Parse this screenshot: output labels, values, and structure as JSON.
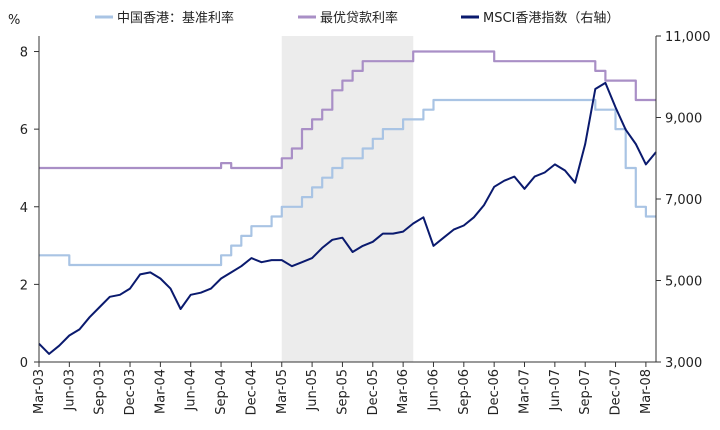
{
  "chart_data": {
    "type": "line",
    "left_axis": {
      "unit": "%",
      "ticks": [
        0,
        2,
        4,
        6,
        8
      ],
      "tick_labels": [
        "0",
        "2",
        "4",
        "6",
        "8"
      ],
      "range": [
        0,
        8.4
      ]
    },
    "right_axis": {
      "ticks": [
        3000,
        5000,
        7000,
        9000,
        11000
      ],
      "tick_labels": [
        "3,000",
        "5,000",
        "7,000",
        "9,000",
        "11,000"
      ],
      "range": [
        3000,
        11000
      ]
    },
    "x_axis": {
      "range": [
        "2003-03",
        "2008-04"
      ],
      "tick_labels": [
        "Mar-03",
        "Jun-03",
        "Sep-03",
        "Dec-03",
        "Mar-04",
        "Jun-04",
        "Sep-04",
        "Dec-04",
        "Mar-05",
        "Jun-05",
        "Sep-05",
        "Dec-05",
        "Mar-06",
        "Jun-06",
        "Sep-06",
        "Dec-06",
        "Mar-07",
        "Jun-07",
        "Sep-07",
        "Dec-07",
        "Mar-08"
      ],
      "tick_dates": [
        "2003-03",
        "2003-06",
        "2003-09",
        "2003-12",
        "2004-03",
        "2004-06",
        "2004-09",
        "2004-12",
        "2005-03",
        "2005-06",
        "2005-09",
        "2005-12",
        "2006-03",
        "2006-06",
        "2006-09",
        "2006-12",
        "2007-03",
        "2007-06",
        "2007-09",
        "2007-12",
        "2008-03"
      ]
    },
    "shaded_period": [
      "2005-03",
      "2006-04"
    ],
    "legend_position": "top",
    "grid": false,
    "series": [
      {
        "name": "中国香港：基准利率",
        "axis": "left",
        "color": "#a9c4e4",
        "step": true,
        "points": [
          [
            "2003-03",
            2.75
          ],
          [
            "2003-06",
            2.5
          ],
          [
            "2004-09",
            2.75
          ],
          [
            "2004-10",
            3.0
          ],
          [
            "2004-11",
            3.25
          ],
          [
            "2004-12",
            3.5
          ],
          [
            "2005-02",
            3.75
          ],
          [
            "2005-03",
            4.0
          ],
          [
            "2005-05",
            4.25
          ],
          [
            "2005-06",
            4.5
          ],
          [
            "2005-07",
            4.75
          ],
          [
            "2005-08",
            5.0
          ],
          [
            "2005-09",
            5.25
          ],
          [
            "2005-11",
            5.5
          ],
          [
            "2005-12",
            5.75
          ],
          [
            "2006-01",
            6.0
          ],
          [
            "2006-03",
            6.25
          ],
          [
            "2006-05",
            6.5
          ],
          [
            "2006-06",
            6.75
          ],
          [
            "2007-09",
            6.75
          ],
          [
            "2007-10",
            6.5
          ],
          [
            "2007-12",
            6.0
          ],
          [
            "2008-01",
            5.75
          ],
          [
            "2008-01",
            5.0
          ],
          [
            "2008-02",
            4.0
          ],
          [
            "2008-03",
            3.75
          ],
          [
            "2008-04",
            3.75
          ]
        ]
      },
      {
        "name": "最优贷款利率",
        "axis": "left",
        "color": "#a98fc6",
        "step": true,
        "points": [
          [
            "2003-03",
            5.0
          ],
          [
            "2004-09",
            5.125
          ],
          [
            "2004-10",
            5.0
          ],
          [
            "2005-03",
            5.25
          ],
          [
            "2005-04",
            5.5
          ],
          [
            "2005-05",
            6.0
          ],
          [
            "2005-06",
            6.25
          ],
          [
            "2005-07",
            6.5
          ],
          [
            "2005-08",
            7.0
          ],
          [
            "2005-09",
            7.25
          ],
          [
            "2005-10",
            7.5
          ],
          [
            "2005-11",
            7.75
          ],
          [
            "2005-12",
            7.75
          ],
          [
            "2006-04",
            8.0
          ],
          [
            "2006-07",
            8.0
          ],
          [
            "2006-12",
            7.75
          ],
          [
            "2007-09",
            7.75
          ],
          [
            "2007-10",
            7.5
          ],
          [
            "2007-11",
            7.25
          ],
          [
            "2008-02",
            6.75
          ],
          [
            "2008-04",
            6.75
          ]
        ]
      },
      {
        "name": "MSCI香港指数（右轴）",
        "axis": "right",
        "color": "#0a1a6e",
        "step": false,
        "points": [
          [
            "2003-03",
            3450
          ],
          [
            "2003-04",
            3200
          ],
          [
            "2003-05",
            3400
          ],
          [
            "2003-06",
            3650
          ],
          [
            "2003-07",
            3800
          ],
          [
            "2003-08",
            4100
          ],
          [
            "2003-09",
            4350
          ],
          [
            "2003-10",
            4600
          ],
          [
            "2003-11",
            4650
          ],
          [
            "2003-12",
            4800
          ],
          [
            "2004-01",
            5150
          ],
          [
            "2004-02",
            5200
          ],
          [
            "2004-03",
            5050
          ],
          [
            "2004-04",
            4800
          ],
          [
            "2004-05",
            4300
          ],
          [
            "2004-06",
            4650
          ],
          [
            "2004-07",
            4700
          ],
          [
            "2004-08",
            4800
          ],
          [
            "2004-09",
            5050
          ],
          [
            "2004-10",
            5200
          ],
          [
            "2004-11",
            5350
          ],
          [
            "2004-12",
            5550
          ],
          [
            "2005-01",
            5450
          ],
          [
            "2005-02",
            5500
          ],
          [
            "2005-03",
            5500
          ],
          [
            "2005-04",
            5350
          ],
          [
            "2005-05",
            5450
          ],
          [
            "2005-06",
            5550
          ],
          [
            "2005-07",
            5800
          ],
          [
            "2005-08",
            6000
          ],
          [
            "2005-09",
            6050
          ],
          [
            "2005-10",
            5700
          ],
          [
            "2005-11",
            5850
          ],
          [
            "2005-12",
            5950
          ],
          [
            "2006-01",
            6150
          ],
          [
            "2006-02",
            6150
          ],
          [
            "2006-03",
            6200
          ],
          [
            "2006-04",
            6400
          ],
          [
            "2006-05",
            6550
          ],
          [
            "2006-06",
            5850
          ],
          [
            "2006-07",
            6050
          ],
          [
            "2006-08",
            6250
          ],
          [
            "2006-09",
            6350
          ],
          [
            "2006-10",
            6550
          ],
          [
            "2006-11",
            6850
          ],
          [
            "2006-12",
            7300
          ],
          [
            "2007-01",
            7450
          ],
          [
            "2007-02",
            7550
          ],
          [
            "2007-03",
            7250
          ],
          [
            "2007-04",
            7550
          ],
          [
            "2007-05",
            7650
          ],
          [
            "2007-06",
            7850
          ],
          [
            "2007-07",
            7700
          ],
          [
            "2007-08",
            7400
          ],
          [
            "2007-09",
            8350
          ],
          [
            "2007-10",
            9700
          ],
          [
            "2007-11",
            9850
          ],
          [
            "2007-12",
            9250
          ],
          [
            "2008-01",
            8700
          ],
          [
            "2008-02",
            8350
          ],
          [
            "2008-03",
            7850
          ],
          [
            "2008-04",
            8150
          ]
        ]
      }
    ]
  }
}
